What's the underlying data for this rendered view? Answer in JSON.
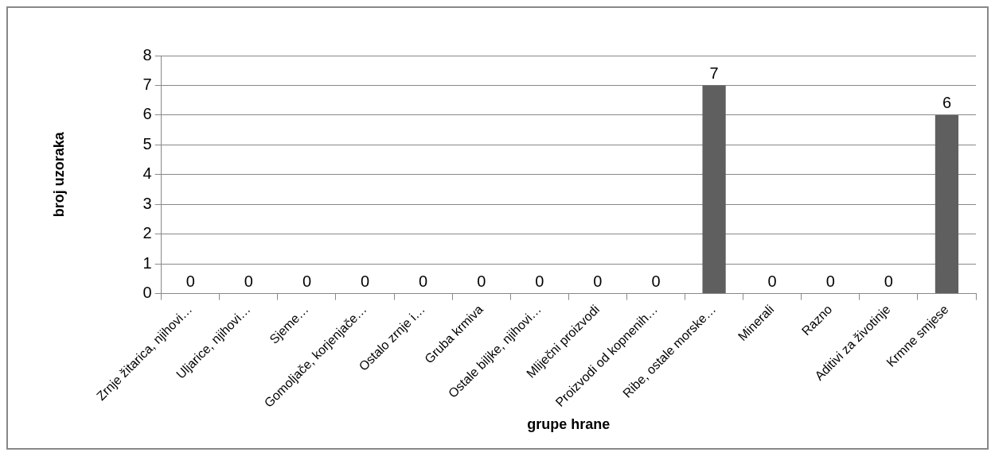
{
  "chart_data": {
    "type": "bar",
    "xlabel": "grupe hrane",
    "ylabel": "broj uzoraka",
    "categories": [
      "Zrnje žitarica, njihovi…",
      "Uljarice, njihovi…",
      "Sjeme…",
      "Gomoljače, korjenjače…",
      "Ostalo zrnje i…",
      "Gruba krmiva",
      "Ostale biljke, njihovi…",
      "Mliječni proizvodi",
      "Proizvodi od kopnenih…",
      "Ribe, ostale morske…",
      "Minerali",
      "Razno",
      "Aditivi za životinje",
      "Krmne smjese"
    ],
    "values": [
      0,
      0,
      0,
      0,
      0,
      0,
      0,
      0,
      0,
      7,
      0,
      0,
      0,
      6
    ],
    "color": "#5f5f5f",
    "ylim": [
      0,
      8
    ],
    "yticks": [
      0,
      1,
      2,
      3,
      4,
      5,
      6,
      7,
      8
    ],
    "grid": "y",
    "legend": false,
    "data_labels": true
  }
}
